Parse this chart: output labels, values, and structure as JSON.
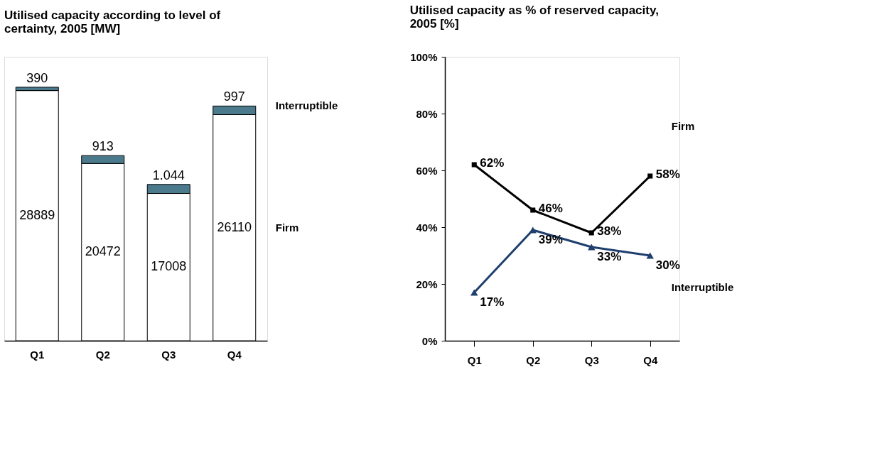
{
  "chart_data": [
    {
      "type": "bar",
      "title": "Utilised capacity according to level of certainty, 2005 [MW]",
      "categories": [
        "Q1",
        "Q2",
        "Q3",
        "Q4"
      ],
      "stacked": true,
      "series": [
        {
          "name": "Firm",
          "color": "#ffffff",
          "values": [
            28889,
            20472,
            17008,
            26110
          ],
          "value_labels": [
            "28889",
            "20472",
            "17008",
            "26110"
          ]
        },
        {
          "name": "Interruptible",
          "color": "#4a7a8c",
          "values": [
            390,
            913,
            1044,
            997
          ],
          "value_labels": [
            "390",
            "913",
            "1.044",
            "997"
          ]
        }
      ]
    },
    {
      "type": "line",
      "title": "Utilised capacity as % of reserved capacity, 2005 [%]",
      "categories": [
        "Q1",
        "Q2",
        "Q3",
        "Q4"
      ],
      "ylim": [
        0,
        100
      ],
      "yticks": [
        {
          "value": 0,
          "label": "0%"
        },
        {
          "value": 20,
          "label": "20%"
        },
        {
          "value": 40,
          "label": "40%"
        },
        {
          "value": 60,
          "label": "60%"
        },
        {
          "value": 80,
          "label": "80%"
        },
        {
          "value": 100,
          "label": "100%"
        }
      ],
      "series": [
        {
          "name": "Firm",
          "color": "#000000",
          "marker": "square",
          "values": [
            62,
            46,
            38,
            58
          ],
          "value_labels": [
            "62%",
            "46%",
            "38%",
            "58%"
          ]
        },
        {
          "name": "Interruptible",
          "color": "#1f3f6e",
          "marker": "triangle",
          "values": [
            17,
            39,
            33,
            30
          ],
          "value_labels": [
            "17%",
            "39%",
            "33%",
            "30%"
          ]
        }
      ]
    }
  ]
}
